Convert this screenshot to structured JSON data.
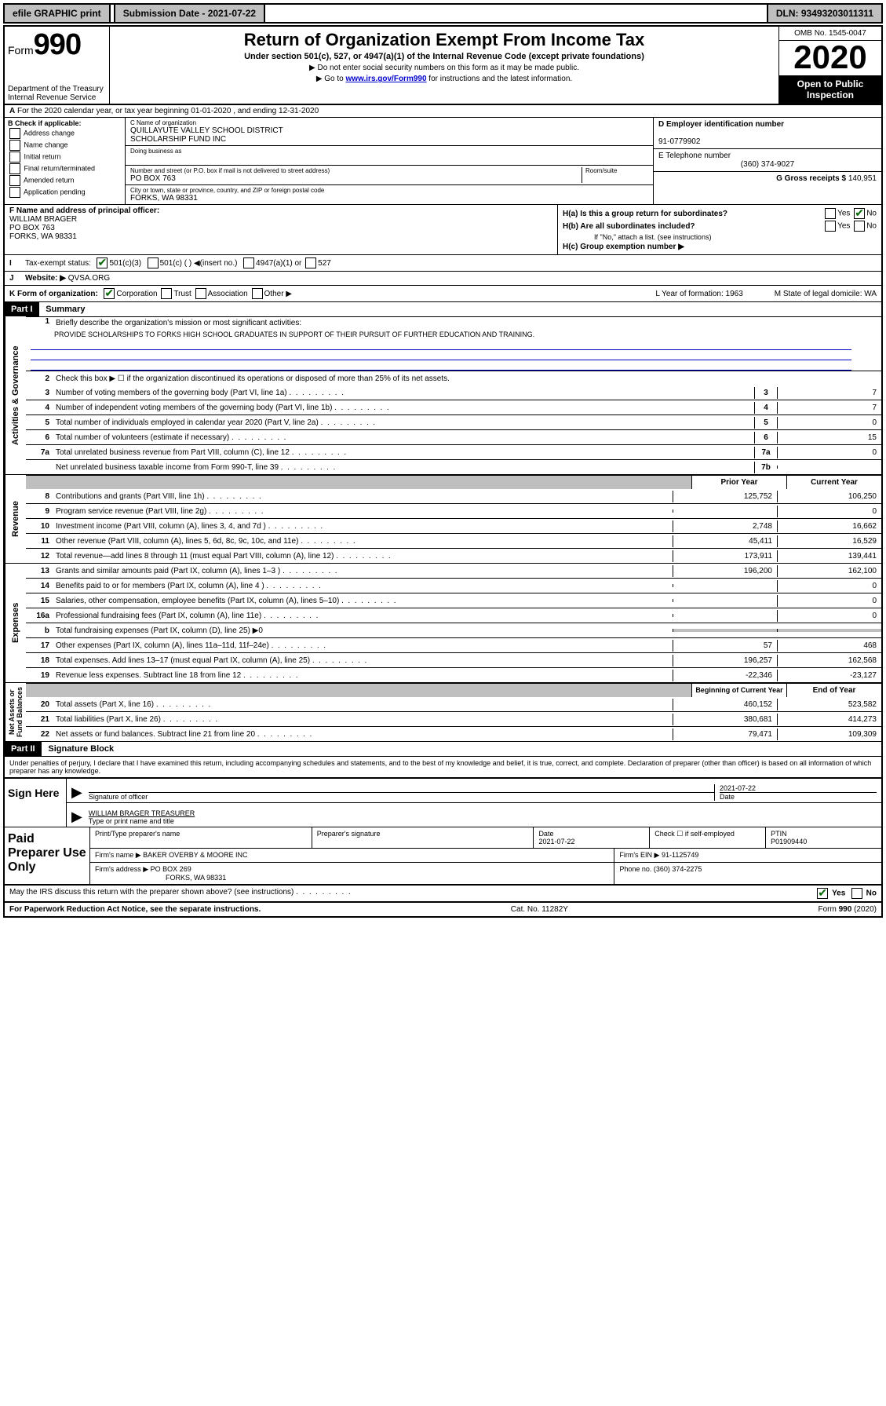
{
  "topbar": {
    "efile": "efile GRAPHIC print",
    "submission": "Submission Date - 2021-07-22",
    "dln": "DLN: 93493203011311"
  },
  "header": {
    "form_label": "Form",
    "form_number": "990",
    "title": "Return of Organization Exempt From Income Tax",
    "subtitle": "Under section 501(c), 527, or 4947(a)(1) of the Internal Revenue Code (except private foundations)",
    "ssn_note": "▶ Do not enter social security numbers on this form as it may be made public.",
    "goto_pre": "▶ Go to ",
    "goto_link": "www.irs.gov/Form990",
    "goto_post": " for instructions and the latest information.",
    "dept": "Department of the Treasury\nInternal Revenue Service",
    "omb": "OMB No. 1545-0047",
    "year": "2020",
    "inspection": "Open to Public Inspection"
  },
  "row_a": "For the 2020 calendar year, or tax year beginning 01-01-2020    , and ending 12-31-2020",
  "col_b": {
    "header": "B Check if applicable:",
    "opts": [
      "Address change",
      "Name change",
      "Initial return",
      "Final return/terminated",
      "Amended return",
      "Application pending"
    ]
  },
  "col_c": {
    "name_label": "C Name of organization",
    "name": "QUILLAYUTE VALLEY SCHOOL DISTRICT\nSCHOLARSHIP FUND INC",
    "dba_label": "Doing business as",
    "dba": "",
    "addr_label": "Number and street (or P.O. box if mail is not delivered to street address)",
    "room_label": "Room/suite",
    "addr": "PO BOX 763",
    "city_label": "City or town, state or province, country, and ZIP or foreign postal code",
    "city": "FORKS, WA  98331"
  },
  "col_d": {
    "ein_label": "D Employer identification number",
    "ein": "91-0779902",
    "phone_label": "E Telephone number",
    "phone": "(360) 374-9027",
    "gross_label": "G Gross receipts $",
    "gross": "140,951"
  },
  "col_f": {
    "label": "F  Name and address of principal officer:",
    "name": "WILLIAM BRAGER",
    "addr1": "PO BOX 763",
    "addr2": "FORKS, WA  98331"
  },
  "col_h": {
    "ha": "H(a)  Is this a group return for subordinates?",
    "hb": "H(b)  Are all subordinates included?",
    "hb_note": "If \"No,\" attach a list. (see instructions)",
    "hc": "H(c)  Group exemption number ▶"
  },
  "row_i": {
    "label": "Tax-exempt status:",
    "opt1": "501(c)(3)",
    "opt2": "501(c) (   ) ◀(insert no.)",
    "opt3": "4947(a)(1) or",
    "opt4": "527"
  },
  "row_j": {
    "label": "Website: ▶",
    "value": "QVSA.ORG"
  },
  "row_k": {
    "label": "K Form of organization:",
    "corp": "Corporation",
    "trust": "Trust",
    "assoc": "Association",
    "other": "Other ▶",
    "l": "L Year of formation: 1963",
    "m": "M State of legal domicile: WA"
  },
  "part1": {
    "label": "Part I",
    "title": "Summary",
    "l1": "Briefly describe the organization's mission or most significant activities:",
    "mission": "PROVIDE SCHOLARSHIPS TO FORKS HIGH SCHOOL GRADUATES IN SUPPORT OF THEIR PURSUIT OF FURTHER EDUCATION AND TRAINING.",
    "l2": "Check this box ▶ ☐  if the organization discontinued its operations or disposed of more than 25% of its net assets.",
    "governance": [
      {
        "n": "3",
        "d": "Number of voting members of the governing body (Part VI, line 1a)",
        "b": "3",
        "v": "7"
      },
      {
        "n": "4",
        "d": "Number of independent voting members of the governing body (Part VI, line 1b)",
        "b": "4",
        "v": "7"
      },
      {
        "n": "5",
        "d": "Total number of individuals employed in calendar year 2020 (Part V, line 2a)",
        "b": "5",
        "v": "0"
      },
      {
        "n": "6",
        "d": "Total number of volunteers (estimate if necessary)",
        "b": "6",
        "v": "15"
      },
      {
        "n": "7a",
        "d": "Total unrelated business revenue from Part VIII, column (C), line 12",
        "b": "7a",
        "v": "0"
      },
      {
        "n": "",
        "d": "Net unrelated business taxable income from Form 990-T, line 39",
        "b": "7b",
        "v": ""
      }
    ],
    "prior_hdr": "Prior Year",
    "current_hdr": "Current Year",
    "revenue": [
      {
        "n": "8",
        "d": "Contributions and grants (Part VIII, line 1h)",
        "p": "125,752",
        "c": "106,250"
      },
      {
        "n": "9",
        "d": "Program service revenue (Part VIII, line 2g)",
        "p": "",
        "c": "0"
      },
      {
        "n": "10",
        "d": "Investment income (Part VIII, column (A), lines 3, 4, and 7d )",
        "p": "2,748",
        "c": "16,662"
      },
      {
        "n": "11",
        "d": "Other revenue (Part VIII, column (A), lines 5, 6d, 8c, 9c, 10c, and 11e)",
        "p": "45,411",
        "c": "16,529"
      },
      {
        "n": "12",
        "d": "Total revenue—add lines 8 through 11 (must equal Part VIII, column (A), line 12)",
        "p": "173,911",
        "c": "139,441"
      }
    ],
    "expenses": [
      {
        "n": "13",
        "d": "Grants and similar amounts paid (Part IX, column (A), lines 1–3 )",
        "p": "196,200",
        "c": "162,100"
      },
      {
        "n": "14",
        "d": "Benefits paid to or for members (Part IX, column (A), line 4 )",
        "p": "",
        "c": "0"
      },
      {
        "n": "15",
        "d": "Salaries, other compensation, employee benefits (Part IX, column (A), lines 5–10)",
        "p": "",
        "c": "0"
      },
      {
        "n": "16a",
        "d": "Professional fundraising fees (Part IX, column (A), line 11e)",
        "p": "",
        "c": "0"
      },
      {
        "n": "b",
        "d": "Total fundraising expenses (Part IX, column (D), line 25) ▶0",
        "p": "grey",
        "c": "grey"
      },
      {
        "n": "17",
        "d": "Other expenses (Part IX, column (A), lines 11a–11d, 11f–24e)",
        "p": "57",
        "c": "468"
      },
      {
        "n": "18",
        "d": "Total expenses. Add lines 13–17 (must equal Part IX, column (A), line 25)",
        "p": "196,257",
        "c": "162,568"
      },
      {
        "n": "19",
        "d": "Revenue less expenses. Subtract line 18 from line 12",
        "p": "-22,346",
        "c": "-23,127"
      }
    ],
    "netassets_hdr1": "Beginning of Current Year",
    "netassets_hdr2": "End of Year",
    "netassets": [
      {
        "n": "20",
        "d": "Total assets (Part X, line 16)",
        "p": "460,152",
        "c": "523,582"
      },
      {
        "n": "21",
        "d": "Total liabilities (Part X, line 26)",
        "p": "380,681",
        "c": "414,273"
      },
      {
        "n": "22",
        "d": "Net assets or fund balances. Subtract line 21 from line 20",
        "p": "79,471",
        "c": "109,309"
      }
    ]
  },
  "part2": {
    "label": "Part II",
    "title": "Signature Block",
    "perjury": "Under penalties of perjury, I declare that I have examined this return, including accompanying schedules and statements, and to the best of my knowledge and belief, it is true, correct, and complete. Declaration of preparer (other than officer) is based on all information of which preparer has any knowledge."
  },
  "sign": {
    "label": "Sign Here",
    "sig_label": "Signature of officer",
    "date": "2021-07-22",
    "date_label": "Date",
    "name": "WILLIAM BRAGER  TREASURER",
    "name_label": "Type or print name and title"
  },
  "preparer": {
    "label": "Paid Preparer Use Only",
    "h1": "Print/Type preparer's name",
    "h2": "Preparer's signature",
    "h3": "Date",
    "date": "2021-07-22",
    "h4": "Check ☐ if self-employed",
    "h5": "PTIN",
    "ptin": "P01909440",
    "firm_label": "Firm's name    ▶",
    "firm": "BAKER OVERBY & MOORE INC",
    "ein_label": "Firm's EIN ▶",
    "ein": "91-1125749",
    "addr_label": "Firm's address ▶",
    "addr1": "PO BOX 269",
    "addr2": "FORKS, WA  98331",
    "phone_label": "Phone no.",
    "phone": "(360) 374-2275"
  },
  "discuss": "May the IRS discuss this return with the preparer shown above? (see instructions)",
  "footer": {
    "left": "For Paperwork Reduction Act Notice, see the separate instructions.",
    "mid": "Cat. No. 11282Y",
    "right": "Form 990 (2020)"
  }
}
